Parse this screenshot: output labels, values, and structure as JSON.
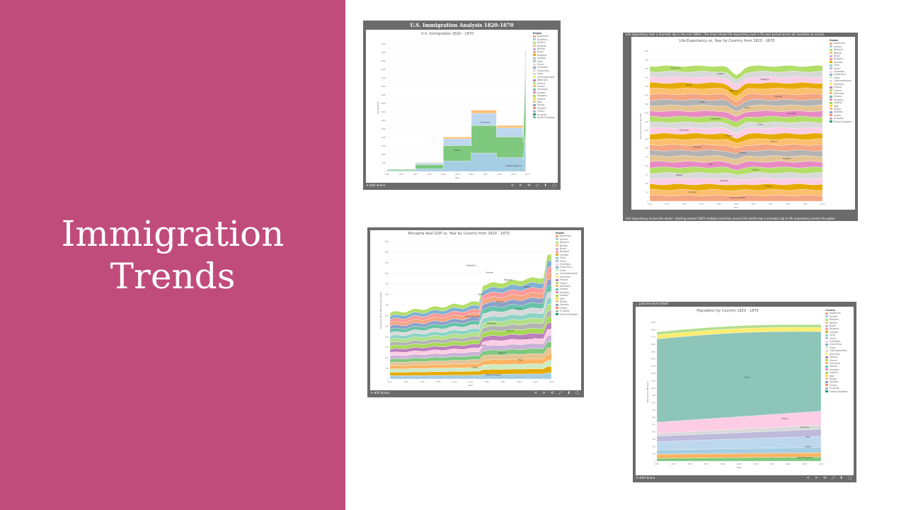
{
  "slide": {
    "title_line1": "Immigration",
    "title_line2": "Trends"
  },
  "colors": {
    "accent": "#c04c7c",
    "frame": "#6b6b6b"
  },
  "legend_colors": [
    "#f4a582",
    "#a6cee3",
    "#b2df8a",
    "#fdbf6f",
    "#cab2d6",
    "#fb9a99",
    "#e6ab02",
    "#8dd3c7",
    "#bebada",
    "#fccde5",
    "#80b1d3",
    "#ccebc5",
    "#d9d9d9",
    "#ffed6f",
    "#bc80bd",
    "#b3de69",
    "#fdb462",
    "#66c2a5",
    "#e78ac3",
    "#a6d854",
    "#ffd92f",
    "#e5c494",
    "#8da0cb",
    "#fc8d62",
    "#b3b3b3",
    "#1b9e77",
    "#7fc97f"
  ],
  "legend_countries_a": [
    "Argentina",
    "Australia",
    "Austria",
    "Belgium",
    "Bolivia",
    "Brazil",
    "Bulgaria",
    "Canada",
    "Chile",
    "China",
    "Colombia",
    "Costa Rica",
    "Cuba",
    "Czechoslovakia",
    "Denmark",
    "Finland",
    "France",
    "Germany",
    "Greece",
    "Hungary",
    "Ireland",
    "Italy",
    "Russia",
    "Sweden",
    "Turkey",
    "Uruguay",
    "United Kingdom"
  ],
  "legend_countries_b": [
    "Argentina",
    "Austria",
    "Belgium",
    "Bolivia",
    "Brazil",
    "Bulgaria",
    "Canada",
    "Chile",
    "China",
    "Colombia",
    "Costa Rica",
    "Cuba",
    "Czechoslovakia",
    "Germany",
    "Finland",
    "France",
    "Germany",
    "Greece",
    "Hungary",
    "Iceland",
    "Italy",
    "Russia",
    "Sweden",
    "Turkey",
    "Uruguay",
    "United Kingdom"
  ],
  "chart1": {
    "header": "U.S. Immigration Analysis 1820-1870",
    "title": "U.S. Immigration 1820 - 1870",
    "legend_title": "Region",
    "xlabel": "Year",
    "ylabel": "Immigration",
    "yticks": [
      "0",
      "50K",
      "100K",
      "150K",
      "200K",
      "250K",
      "300K",
      "350K",
      "400K",
      "450K",
      "500K",
      "550K",
      "600K",
      "650K",
      "700K",
      "750K"
    ],
    "xticks": [
      "1820",
      "1825",
      "1830",
      "1835",
      "1840",
      "1845",
      "1850",
      "1855",
      "1860",
      "1865",
      "1870"
    ],
    "labels": [
      "Germany",
      "Ireland",
      "United Kingdom"
    ]
  },
  "chart2": {
    "banner": "Life expectancy took a dramatic dip in the mid 1800s. This chart shows life expectancy over a 50 year period across all countries on record.",
    "title": "Life Expectancy vs. Year by Country from 1820 - 1870",
    "legend_title": "Region",
    "xlabel": "Year",
    "ylabel": "Life Expectancy Stacked",
    "yticks": [
      "0",
      "50",
      "100",
      "150",
      "200",
      "250",
      "300",
      "350",
      "400",
      "450",
      "500",
      "550",
      "600",
      "650",
      "700",
      "750",
      "800",
      "850"
    ],
    "xticks": [
      "1820",
      "1825",
      "1830",
      "1835",
      "1840",
      "1845",
      "1850",
      "1855",
      "1860",
      "1865",
      "1870"
    ],
    "labels": [
      "Argentina",
      "Austria",
      "Belgium",
      "Brazil",
      "Bulgaria",
      "Canada",
      "Chile",
      "China",
      "Colombia",
      "Costa Rica",
      "Cuba",
      "Denmark",
      "Finland",
      "France",
      "Germany",
      "Greece",
      "Hungary",
      "Italy",
      "Ireland",
      "Russia",
      "Sweden",
      "Turkey",
      "Uruguay",
      "United Kingdom"
    ],
    "banner_bottom": "Life expectancy across the world - starting around 1845 multiple countries around the world saw a dramatic dip in life expectancy across the globe"
  },
  "chart3": {
    "title": "Percapita Real GDP vs. Year by Country from 1820 - 1870",
    "legend_title": "Region",
    "xlabel": "Year",
    "ylabel": "Percapita Real GDP Stacked (USD)",
    "yticks": [
      "0",
      "5K",
      "10K",
      "15K",
      "20K",
      "25K",
      "30K",
      "35K",
      "40K",
      "45K",
      "50K",
      "55K",
      "60K",
      "65K"
    ],
    "xticks": [
      "1820",
      "1825",
      "1830",
      "1835",
      "1840",
      "1845",
      "1850",
      "1855",
      "1860",
      "1865",
      "1870"
    ],
    "labels": [
      "Argentina",
      "Austria",
      "Belgium",
      "Bolivia",
      "Brazil",
      "Canada",
      "China",
      "Czechoslovakia",
      "Denmark",
      "France",
      "Germany",
      "Greece",
      "Ireland",
      "Italy",
      "Turkey",
      "United Kingdom"
    ]
  },
  "chart4": {
    "banner": "... just one more tribal?",
    "title": "Population by Country 1820 - 1870",
    "legend_title": "Country",
    "xlabel": "Year",
    "ylabel": "Population (Millions)",
    "yticks": [
      "0",
      "100",
      "200",
      "300",
      "400",
      "500",
      "600",
      "700",
      "800",
      "900",
      "1000",
      "1100",
      "1200",
      "1300",
      "1400",
      "1500",
      "1600",
      "1700",
      "1800",
      "1900"
    ],
    "xticks": [
      "1820",
      "1825",
      "1830",
      "1835",
      "1840",
      "1845",
      "1850",
      "1855",
      "1860",
      "1865",
      "1870"
    ],
    "labels": [
      "China",
      "France",
      "Germany",
      "Italy",
      "Russia",
      "United Kingdom"
    ]
  },
  "footer": {
    "brand": "+ableau",
    "controls": "< > ⟲ ⤢ ⬇ ▢"
  }
}
